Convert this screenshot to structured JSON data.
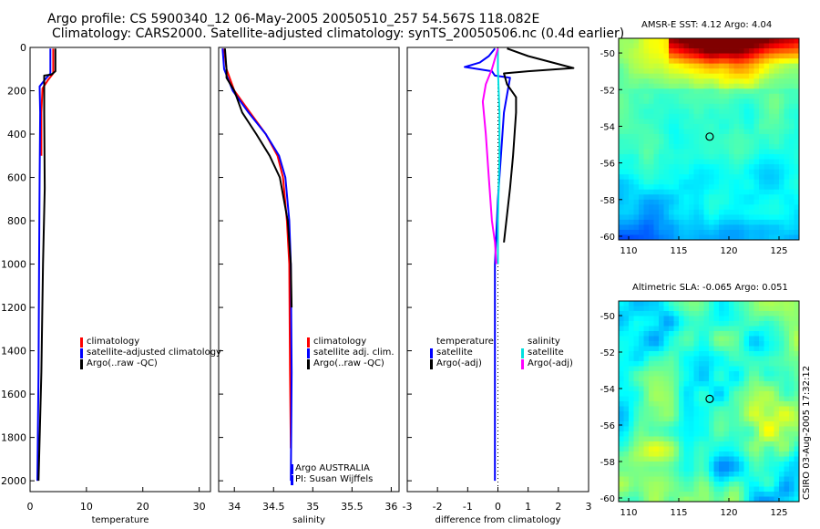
{
  "header": {
    "title_line1": "Argo profile: CS 5900340_12 06-May-2005 20050510_257 54.567S 118.082E",
    "title_line2": "Climatology: CARS2000. Satellite-adjusted climatology: synTS_20050506.nc (0.4d earlier)"
  },
  "colors": {
    "climatology": "#ff0000",
    "satellite": "#0000ff",
    "argo": "#000000",
    "sal_climatology": "#ff00ff",
    "sal_satellite": "#00e0e0"
  },
  "chart_data": [
    {
      "type": "line",
      "xlabel": "temperature",
      "xlim": [
        0,
        32
      ],
      "ylim": [
        2050,
        0
      ],
      "xticks": [
        "0",
        "10",
        "20",
        "30"
      ],
      "yticks": [
        "0",
        "200",
        "400",
        "600",
        "800",
        "1000",
        "1200",
        "1400",
        "1600",
        "1800",
        "2000"
      ],
      "legend": [
        "climatology",
        "satellite-adjusted climatology",
        "Argo(..raw -QC)"
      ],
      "series": [
        {
          "name": "climatology",
          "points": [
            [
              4.1,
              5
            ],
            [
              4.1,
              120
            ],
            [
              3.2,
              150
            ],
            [
              2.2,
              190
            ],
            [
              2.0,
              300
            ],
            [
              2.0,
              500
            ]
          ]
        },
        {
          "name": "satellite-adjusted climatology",
          "points": [
            [
              3.6,
              5
            ],
            [
              3.6,
              120
            ],
            [
              2.6,
              150
            ],
            [
              1.7,
              180
            ],
            [
              1.8,
              300
            ],
            [
              1.7,
              600
            ],
            [
              1.6,
              1000
            ],
            [
              1.5,
              1500
            ],
            [
              1.3,
              2000
            ]
          ]
        },
        {
          "name": "Argo(..raw -QC)",
          "points": [
            [
              4.5,
              5
            ],
            [
              4.5,
              110
            ],
            [
              3.8,
              125
            ],
            [
              2.5,
              130
            ],
            [
              2.5,
              300
            ],
            [
              2.6,
              650
            ],
            [
              2.3,
              1000
            ],
            [
              2.0,
              1500
            ],
            [
              1.5,
              2000
            ]
          ]
        }
      ]
    },
    {
      "type": "line",
      "xlabel": "salinity",
      "xlim": [
        33.8,
        36.1
      ],
      "ylim": [
        2050,
        0
      ],
      "xticks": [
        "34",
        "34.5",
        "35",
        "35.5",
        "36"
      ],
      "legend": [
        "climatology",
        "satellite adj. clim.",
        "Argo(..raw -QC)"
      ],
      "credit": [
        "Argo AUSTRALIA",
        "PI: Susan Wijffels"
      ],
      "series": [
        {
          "name": "climatology",
          "points": [
            [
              33.87,
              5
            ],
            [
              33.9,
              100
            ],
            [
              34.0,
              200
            ],
            [
              34.2,
              300
            ],
            [
              34.4,
              400
            ],
            [
              34.55,
              500
            ],
            [
              34.62,
              600
            ],
            [
              34.67,
              800
            ],
            [
              34.7,
              1000
            ],
            [
              34.71,
              1500
            ],
            [
              34.72,
              1850
            ]
          ]
        },
        {
          "name": "satellite adj. clim.",
          "points": [
            [
              33.85,
              5
            ],
            [
              33.87,
              100
            ],
            [
              33.98,
              200
            ],
            [
              34.18,
              300
            ],
            [
              34.4,
              400
            ],
            [
              34.57,
              500
            ],
            [
              34.65,
              600
            ],
            [
              34.7,
              800
            ],
            [
              34.72,
              1000
            ],
            [
              34.73,
              1500
            ],
            [
              34.72,
              2000
            ]
          ]
        },
        {
          "name": "Argo(..raw -QC)",
          "points": [
            [
              33.88,
              5
            ],
            [
              33.9,
              100
            ],
            [
              33.9,
              140
            ],
            [
              34.0,
              200
            ],
            [
              34.1,
              300
            ],
            [
              34.28,
              400
            ],
            [
              34.45,
              500
            ],
            [
              34.58,
              600
            ],
            [
              34.68,
              800
            ],
            [
              34.72,
              1000
            ],
            [
              34.73,
              1200
            ]
          ]
        }
      ]
    },
    {
      "type": "line",
      "xlabel": "difference from climatology",
      "xlim": [
        -3,
        3
      ],
      "ylim": [
        2050,
        0
      ],
      "xticks": [
        "-3",
        "-2",
        "-1",
        "0",
        "1",
        "2",
        "3"
      ],
      "legend_left": [
        "temperature",
        "satellite",
        "Argo(-adj)"
      ],
      "legend_right": [
        "salinity",
        "satellite",
        "Argo(-adj)"
      ],
      "series": [
        {
          "name": "temperature satellite",
          "points": [
            [
              -0.1,
              5
            ],
            [
              -0.3,
              40
            ],
            [
              -0.6,
              70
            ],
            [
              -1.1,
              90
            ],
            [
              -0.2,
              110
            ],
            [
              -0.1,
              130
            ],
            [
              0.4,
              140
            ],
            [
              0.2,
              300
            ],
            [
              0.0,
              700
            ],
            [
              -0.1,
              1000
            ],
            [
              -0.1,
              2000
            ]
          ]
        },
        {
          "name": "temperature Argo(-adj)",
          "points": [
            [
              0.3,
              5
            ],
            [
              1.0,
              40
            ],
            [
              2.5,
              95
            ],
            [
              1.0,
              110
            ],
            [
              0.2,
              120
            ],
            [
              0.3,
              170
            ],
            [
              0.6,
              230
            ],
            [
              0.6,
              300
            ],
            [
              0.5,
              500
            ],
            [
              0.4,
              650
            ],
            [
              0.2,
              900
            ]
          ]
        },
        {
          "name": "salinity satellite",
          "points": [
            [
              0.0,
              5
            ],
            [
              0.0,
              100
            ],
            [
              0.05,
              300
            ],
            [
              0.05,
              500
            ],
            [
              0.0,
              800
            ],
            [
              0.0,
              1000
            ]
          ]
        },
        {
          "name": "salinity Argo(-adj)",
          "points": [
            [
              0.0,
              5
            ],
            [
              -0.2,
              100
            ],
            [
              -0.4,
              170
            ],
            [
              -0.5,
              250
            ],
            [
              -0.4,
              400
            ],
            [
              -0.3,
              600
            ],
            [
              -0.2,
              800
            ],
            [
              -0.1,
              900
            ],
            [
              -0.05,
              1000
            ]
          ]
        }
      ]
    },
    {
      "type": "heatmap",
      "title": "AMSR-E SST: 4.12 Argo: 4.04",
      "xlim": [
        109,
        127
      ],
      "ylim": [
        -60.2,
        -49.2
      ],
      "xticks": [
        "110",
        "115",
        "120",
        "125"
      ],
      "yticks": [
        "-50",
        "-52",
        "-54",
        "-56",
        "-58",
        "-60"
      ],
      "marker": [
        118.082,
        -54.567
      ]
    },
    {
      "type": "heatmap",
      "title": "Altimetric SLA: -0.065 Argo: 0.051",
      "xlim": [
        109,
        127
      ],
      "ylim": [
        -60.2,
        -49.2
      ],
      "xticks": [
        "110",
        "115",
        "120",
        "125"
      ],
      "yticks": [
        "-50",
        "-52",
        "-54",
        "-56",
        "-58",
        "-60"
      ],
      "marker": [
        118.082,
        -54.567
      ]
    }
  ],
  "stamp": "CSIRO 03-Aug-2005 17:32:12"
}
